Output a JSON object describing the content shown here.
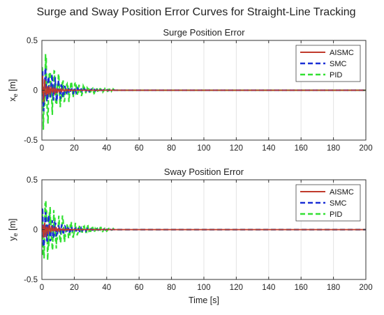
{
  "figure": {
    "title": "Surge and Sway Position Error Curves for Straight-Line Tracking"
  },
  "colors": {
    "AISMC": "#c0392b",
    "SMC": "#1a2fd6",
    "PID": "#33e033",
    "grid": "#e3e3e3",
    "axis": "#333333"
  },
  "chart_data": [
    {
      "type": "line",
      "title": "Surge Position Error",
      "xlabel": "",
      "ylabel": {
        "base": "x",
        "sub": "e",
        "unit": " [m]"
      },
      "xlim": [
        0,
        200
      ],
      "ylim": [
        -0.5,
        0.5
      ],
      "xticks": [
        0,
        20,
        40,
        60,
        80,
        100,
        120,
        140,
        160,
        180,
        200
      ],
      "yticks": [
        -0.5,
        0,
        0.5
      ],
      "grid": true,
      "legend_position": "top-right",
      "series": [
        {
          "name": "AISMC",
          "style": "solid",
          "amplitude": 0.15,
          "decay": 5,
          "period": 1.4,
          "steady": 0.0
        },
        {
          "name": "SMC",
          "style": "dashed",
          "amplitude": 0.3,
          "decay": 9,
          "period": 2.0,
          "steady": 0.0
        },
        {
          "name": "PID",
          "style": "dashed",
          "amplitude": 0.42,
          "decay": 12,
          "period": 2.6,
          "steady": 0.0
        }
      ]
    },
    {
      "type": "line",
      "title": "Sway Position Error",
      "xlabel": "Time [s]",
      "ylabel": {
        "base": "y",
        "sub": "e",
        "unit": " [m]"
      },
      "xlim": [
        0,
        200
      ],
      "ylim": [
        -0.5,
        0.5
      ],
      "xticks": [
        0,
        20,
        40,
        60,
        80,
        100,
        120,
        140,
        160,
        180,
        200
      ],
      "yticks": [
        -0.5,
        0,
        0.5
      ],
      "grid": true,
      "legend_position": "top-right",
      "series": [
        {
          "name": "AISMC",
          "style": "solid",
          "amplitude": 0.12,
          "decay": 5,
          "period": 1.4,
          "steady": 0.0
        },
        {
          "name": "SMC",
          "style": "dashed",
          "amplitude": 0.22,
          "decay": 9,
          "period": 2.0,
          "steady": 0.0
        },
        {
          "name": "PID",
          "style": "dashed",
          "amplitude": 0.4,
          "decay": 12,
          "period": 2.6,
          "steady": 0.0
        }
      ]
    }
  ]
}
